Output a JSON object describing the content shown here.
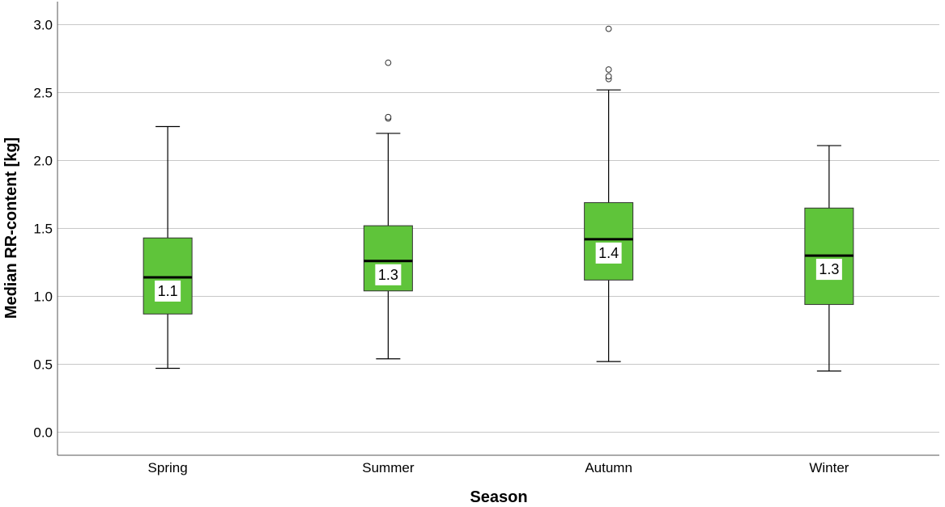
{
  "chart_data": {
    "type": "boxplot",
    "title": "",
    "xlabel": "Season",
    "ylabel": "Median RR-content [kg]",
    "ylim": [
      -0.17,
      3.17
    ],
    "yticks": [
      0.0,
      0.5,
      1.0,
      1.5,
      2.0,
      2.5,
      3.0
    ],
    "ytick_labels": [
      "0.0",
      "0.5",
      "1.0",
      "1.5",
      "2.0",
      "2.5",
      "3.0"
    ],
    "grid": true,
    "box_color": "#5fc43a",
    "categories": [
      "Spring",
      "Summer",
      "Autumn",
      "Winter"
    ],
    "boxes": [
      {
        "category": "Spring",
        "whisker_low": 0.47,
        "q1": 0.87,
        "median": 1.14,
        "q3": 1.43,
        "whisker_high": 2.25,
        "outliers": [],
        "median_label": "1.1"
      },
      {
        "category": "Summer",
        "whisker_low": 0.54,
        "q1": 1.04,
        "median": 1.26,
        "q3": 1.52,
        "whisker_high": 2.2,
        "outliers": [
          2.31,
          2.32,
          2.72
        ],
        "median_label": "1.3"
      },
      {
        "category": "Autumn",
        "whisker_low": 0.52,
        "q1": 1.12,
        "median": 1.42,
        "q3": 1.69,
        "whisker_high": 2.52,
        "outliers": [
          2.6,
          2.62,
          2.67,
          2.97
        ],
        "median_label": "1.4"
      },
      {
        "category": "Winter",
        "whisker_low": 0.45,
        "q1": 0.94,
        "median": 1.3,
        "q3": 1.65,
        "whisker_high": 2.11,
        "outliers": [],
        "median_label": "1.3"
      }
    ]
  }
}
